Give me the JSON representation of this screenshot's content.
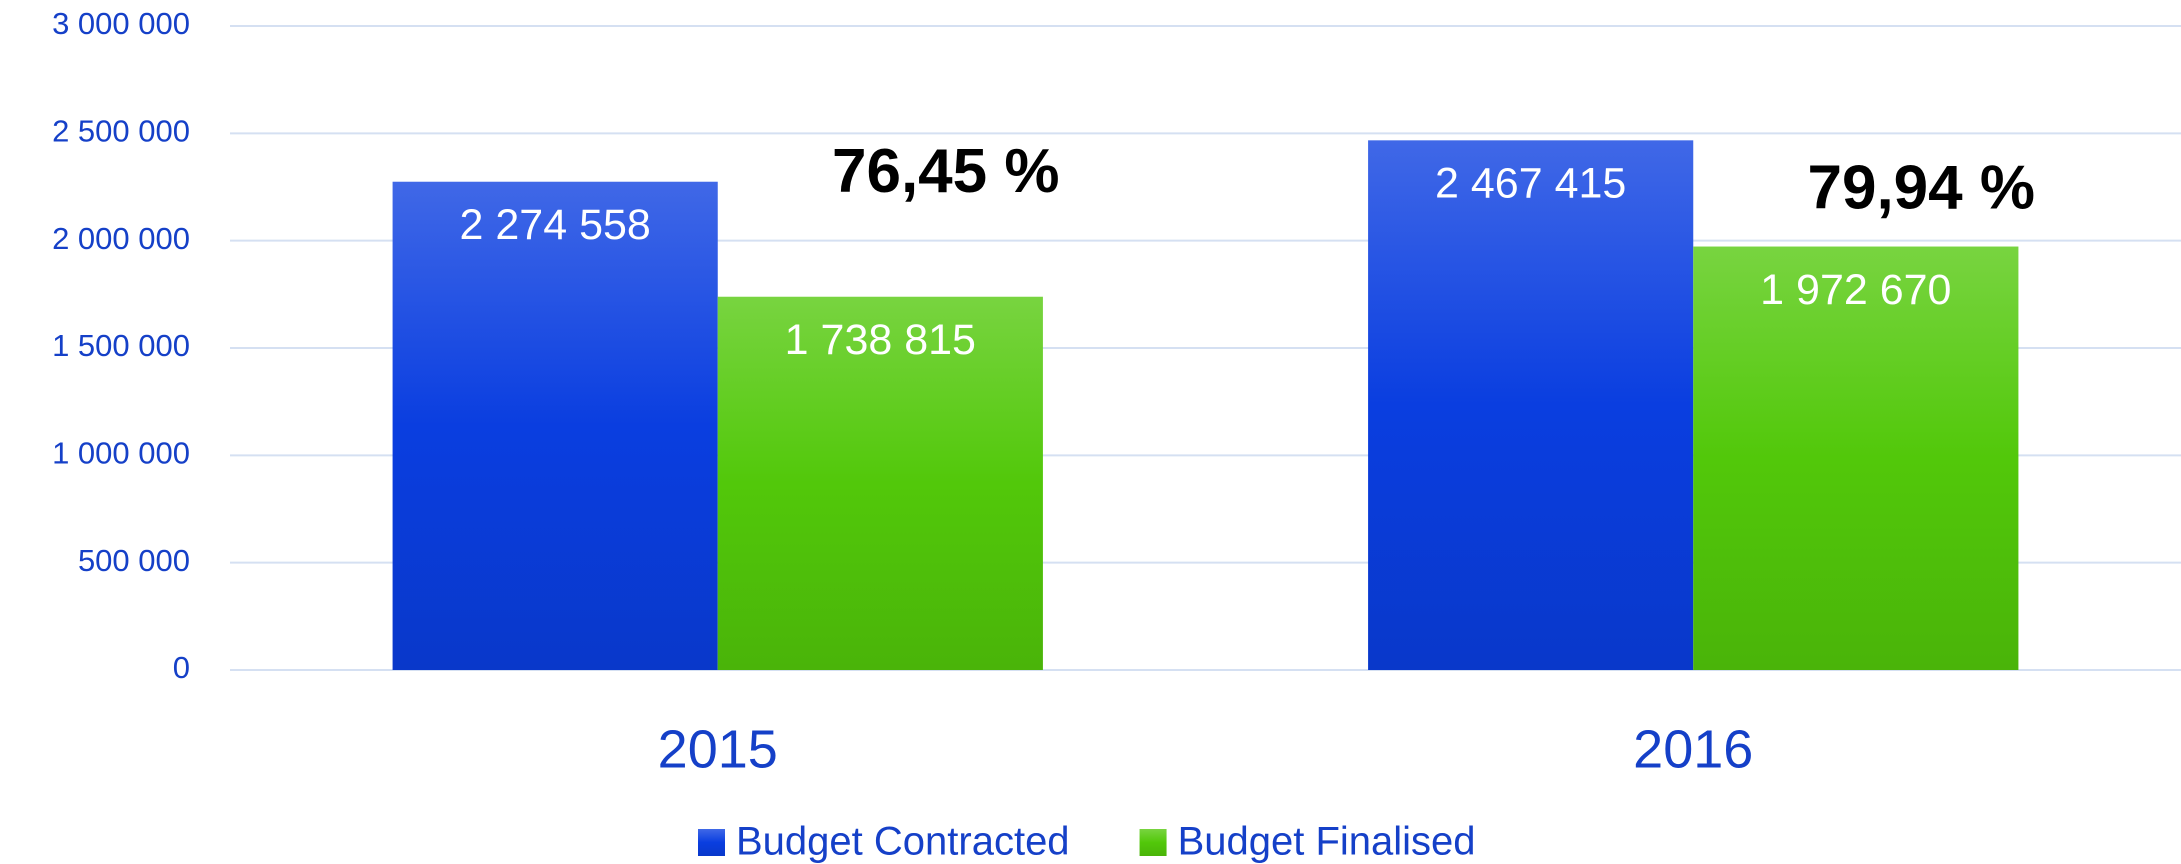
{
  "chart_data": {
    "type": "bar",
    "categories": [
      "2015",
      "2016"
    ],
    "series": [
      {
        "name": "Budget Contracted",
        "color": "#0a3ee0",
        "values": [
          2274558,
          2467415
        ],
        "value_labels": [
          "2 274 558",
          "2 467 415"
        ]
      },
      {
        "name": "Budget Finalised",
        "color": "#52c80a",
        "values": [
          1738815,
          1972670
        ],
        "value_labels": [
          "1 738 815",
          "1 972 670"
        ]
      }
    ],
    "annotations": [
      "76,45 %",
      "79,94 %"
    ],
    "ylim": [
      0,
      3000000
    ],
    "yticks": [
      0,
      {
        "value": 500000,
        "label": "500 000"
      },
      {
        "value": 1000000,
        "label": "1 000 000"
      },
      {
        "value": 1500000,
        "label": "1 500 000"
      },
      {
        "value": 2000000,
        "label": "2 000 000"
      },
      {
        "value": 2500000,
        "label": "2 500 000"
      },
      {
        "value": 3000000,
        "label": "3 000 000"
      }
    ],
    "grid": true,
    "legend": "bottom"
  }
}
